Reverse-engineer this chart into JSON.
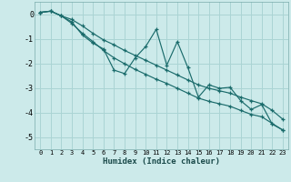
{
  "xlabel": "Humidex (Indice chaleur)",
  "bg_color": "#cceaea",
  "grid_color": "#aad4d4",
  "line_color": "#1a6b6b",
  "xlim": [
    -0.5,
    23.5
  ],
  "ylim": [
    -5.5,
    0.5
  ],
  "xticks": [
    0,
    1,
    2,
    3,
    4,
    5,
    6,
    7,
    8,
    9,
    10,
    11,
    12,
    13,
    14,
    15,
    16,
    17,
    18,
    19,
    20,
    21,
    22,
    23
  ],
  "yticks": [
    0,
    -1,
    -2,
    -3,
    -4,
    -5
  ],
  "main_x": [
    0,
    1,
    2,
    3,
    4,
    5,
    6,
    7,
    8,
    9,
    10,
    11,
    12,
    13,
    14,
    15,
    16,
    17,
    18,
    19,
    20,
    21,
    22,
    23
  ],
  "main_y": [
    0.07,
    0.12,
    -0.07,
    -0.32,
    -0.85,
    -1.18,
    -1.42,
    -2.28,
    -2.42,
    -1.78,
    -1.32,
    -0.62,
    -2.08,
    -1.12,
    -2.18,
    -3.38,
    -2.88,
    -3.02,
    -2.98,
    -3.52,
    -3.88,
    -3.68,
    -4.48,
    -4.72
  ],
  "upper_x": [
    0,
    1,
    2,
    3,
    4,
    5,
    6,
    7,
    8,
    9,
    10,
    11,
    12,
    13,
    14,
    15,
    16,
    17,
    18,
    19,
    20,
    21,
    22,
    23
  ],
  "upper_y": [
    0.07,
    0.12,
    -0.07,
    -0.22,
    -0.48,
    -0.78,
    -1.05,
    -1.25,
    -1.48,
    -1.68,
    -1.88,
    -2.08,
    -2.28,
    -2.48,
    -2.68,
    -2.88,
    -3.02,
    -3.12,
    -3.22,
    -3.38,
    -3.52,
    -3.65,
    -3.92,
    -4.28
  ],
  "lower_x": [
    0,
    1,
    2,
    3,
    4,
    5,
    6,
    7,
    8,
    9,
    10,
    11,
    12,
    13,
    14,
    15,
    16,
    17,
    18,
    19,
    20,
    21,
    22,
    23
  ],
  "lower_y": [
    0.07,
    0.12,
    -0.07,
    -0.38,
    -0.78,
    -1.12,
    -1.48,
    -1.78,
    -2.02,
    -2.25,
    -2.45,
    -2.65,
    -2.82,
    -3.02,
    -3.22,
    -3.42,
    -3.55,
    -3.65,
    -3.75,
    -3.92,
    -4.08,
    -4.18,
    -4.45,
    -4.72
  ]
}
